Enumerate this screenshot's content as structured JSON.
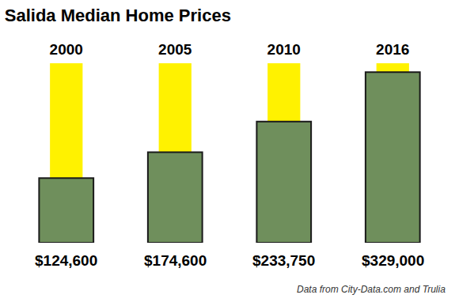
{
  "chart_data": {
    "type": "bar",
    "title": "Salida Median Home Prices",
    "categories": [
      "2000",
      "2005",
      "2010",
      "2016"
    ],
    "values": [
      124600,
      174600,
      233750,
      329000
    ],
    "value_labels": [
      "$124,600",
      "$174,600",
      "$233,750",
      "$329,000"
    ],
    "data_labels": true,
    "color": "#6f8f5c",
    "grid": false,
    "tick_labels": "x",
    "note": "Data from City-Data.com and Trulia"
  }
}
